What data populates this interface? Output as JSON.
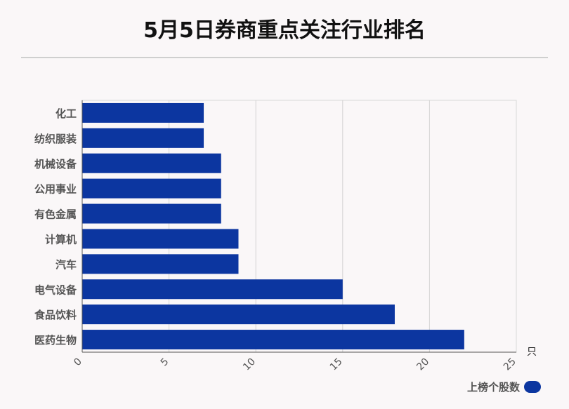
{
  "title": "5月5日券商重点关注行业排名",
  "colors": {
    "bar": "#0c36a0",
    "background": "#faf7f8"
  },
  "chart_data": {
    "type": "bar",
    "orientation": "horizontal",
    "categories": [
      "化工",
      "纺织服装",
      "机械设备",
      "公用事业",
      "有色金属",
      "计算机",
      "汽车",
      "电气设备",
      "食品饮料",
      "医药生物"
    ],
    "series": [
      {
        "name": "上榜个股数",
        "values": [
          7,
          7,
          8,
          8,
          8,
          9,
          9,
          15,
          18,
          22
        ]
      }
    ],
    "xlim": [
      0,
      25
    ],
    "xticks": [
      0,
      5,
      10,
      15,
      20,
      25
    ],
    "xunit": "只",
    "grid": true,
    "legend": "bottom-right"
  }
}
